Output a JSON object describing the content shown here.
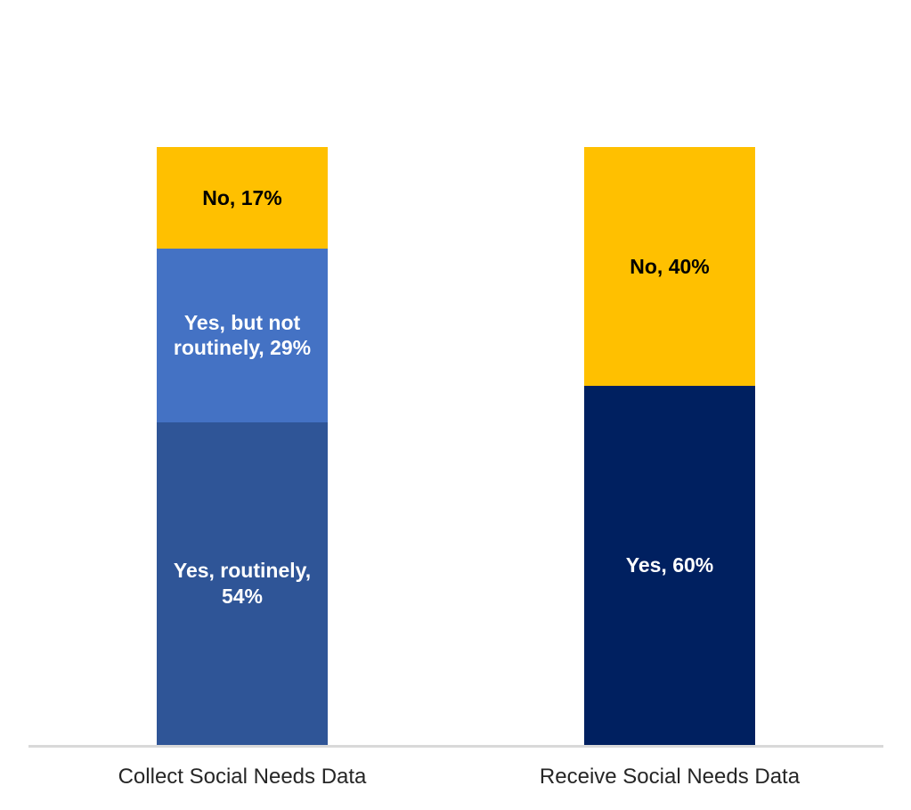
{
  "chart_data": {
    "type": "bar",
    "subtype": "stacked-100-percent-column",
    "title": "",
    "xlabel": "",
    "ylabel": "",
    "ylim": [
      0,
      100
    ],
    "grid": false,
    "legend": "none",
    "axis_line_color": "#D9D9D9",
    "category_label_color": "#262626",
    "categories": [
      "Collect Social Needs Data",
      "Receive Social Needs Data"
    ],
    "segments_order": "top-to-bottom",
    "bars": [
      {
        "category": "Collect Social Needs Data",
        "segments": [
          {
            "name": "No",
            "value": 17,
            "data_label": "No, 17%",
            "color": "#FFC000",
            "text_color": "#000000"
          },
          {
            "name": "Yes, but not routinely",
            "value": 29,
            "data_label": "Yes, but not\nroutinely, 29%",
            "color": "#4472C4",
            "text_color": "#FFFFFF"
          },
          {
            "name": "Yes, routinely",
            "value": 54,
            "data_label": "Yes, routinely,\n54%",
            "color": "#2F5597",
            "text_color": "#FFFFFF"
          }
        ]
      },
      {
        "category": "Receive Social Needs Data",
        "segments": [
          {
            "name": "No",
            "value": 40,
            "data_label": "No, 40%",
            "color": "#FFC000",
            "text_color": "#000000"
          },
          {
            "name": "Yes",
            "value": 60,
            "data_label": "Yes, 60%",
            "color": "#002060",
            "text_color": "#FFFFFF"
          }
        ]
      }
    ]
  }
}
